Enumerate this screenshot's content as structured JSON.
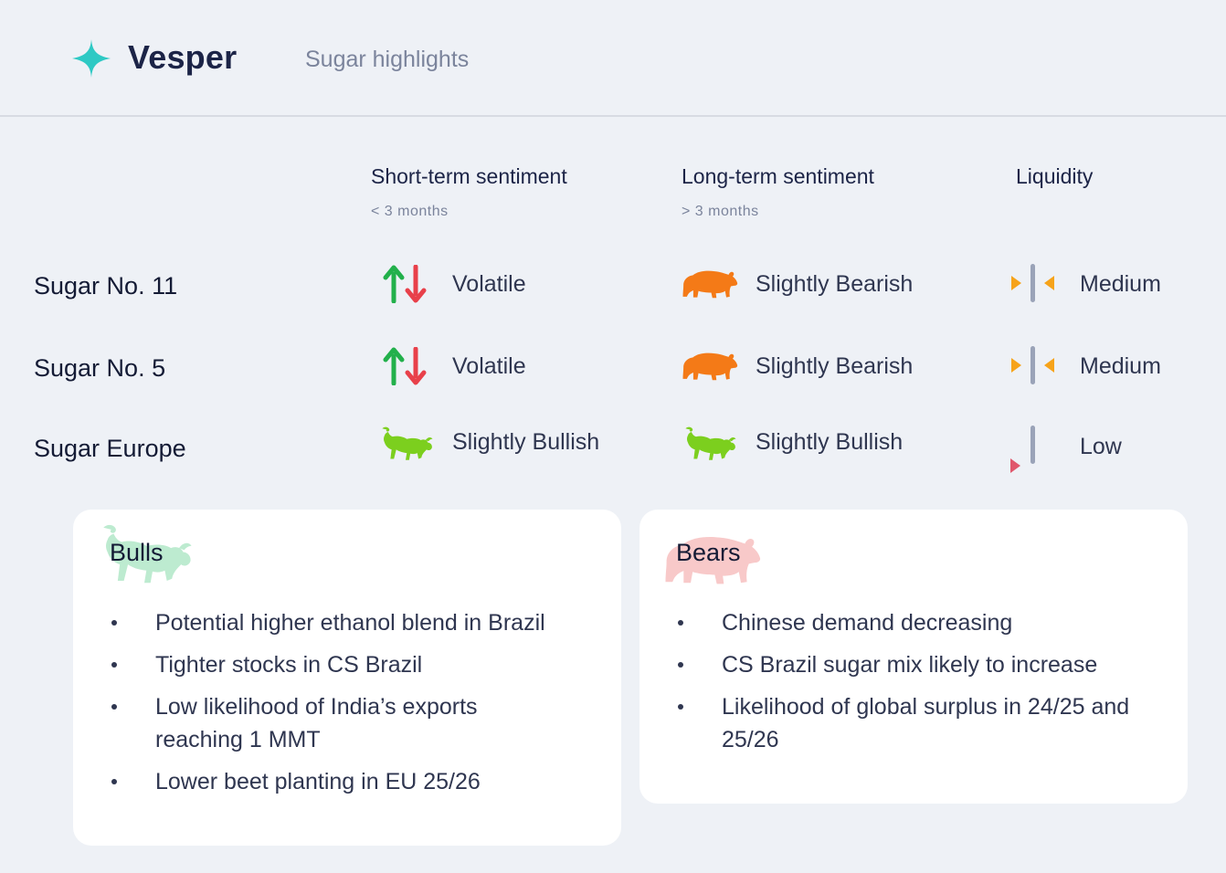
{
  "header": {
    "brand": "Vesper",
    "subtitle": "Sugar highlights"
  },
  "columns": {
    "short_term": {
      "title": "Short-term sentiment",
      "sub": "< 3 months"
    },
    "long_term": {
      "title": "Long-term sentiment",
      "sub": "> 3 months"
    },
    "liquidity": {
      "title": "Liquidity"
    }
  },
  "rows": [
    {
      "label": "Sugar No. 11",
      "short": "Volatile",
      "long": "Slightly Bearish",
      "liquidity": "Medium"
    },
    {
      "label": "Sugar No. 5",
      "short": "Volatile",
      "long": "Slightly Bearish",
      "liquidity": "Medium"
    },
    {
      "label": "Sugar Europe",
      "short": "Slightly Bullish",
      "long": "Slightly Bullish",
      "liquidity": "Low"
    }
  ],
  "bulls": {
    "title": "Bulls",
    "items": [
      "Potential higher ethanol blend in Brazil",
      "Tighter stocks in CS Brazil",
      "Low likelihood of India’s exports",
      "reaching 1 MMT",
      "Lower beet planting in EU 25/26"
    ]
  },
  "bears": {
    "title": "Bears",
    "items": [
      "Chinese demand decreasing",
      "CS Brazil sugar mix likely to increase",
      "Likelihood of global surplus in 24/25 and",
      "25/26"
    ]
  },
  "colors": {
    "brand_accent": "#2ec9c4",
    "bull_green": "#7ccf1e",
    "bear_orange": "#f47a17",
    "up_green": "#22b04b",
    "down_red": "#e8404a",
    "liquidity_medium": "#f6a31a",
    "liquidity_low": "#e0576c",
    "liquidity_bar": "#9aa3b8",
    "bull_card_icon": "#bdebd0",
    "bear_card_icon": "#f8c9c9"
  },
  "icons": {
    "logo": "sparkle-star-icon",
    "volatile": "up-down-arrows-icon",
    "bearish": "bear-icon",
    "bullish": "bull-icon",
    "liquidity_medium": "converging-arrows-icon",
    "liquidity_low": "low-liquidity-icon"
  }
}
